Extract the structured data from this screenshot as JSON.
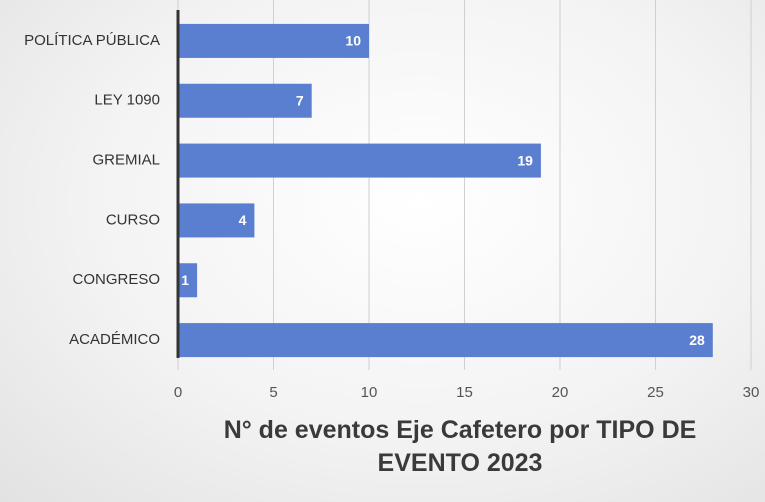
{
  "chart_data": {
    "type": "bar",
    "orientation": "horizontal",
    "title": "N° de eventos Eje Cafetero por TIPO DE EVENTO 2023",
    "categories": [
      "POLÍTICA PÚBLICA",
      "LEY 1090",
      "GREMIAL",
      "CURSO",
      "CONGRESO",
      "ACADÉMICO"
    ],
    "values": [
      10,
      7,
      19,
      4,
      1,
      28
    ],
    "color": "#5a7fd0",
    "xlim": [
      0,
      30
    ],
    "xticks": [
      0,
      5,
      10,
      15,
      20,
      25,
      30
    ],
    "grid": true
  }
}
